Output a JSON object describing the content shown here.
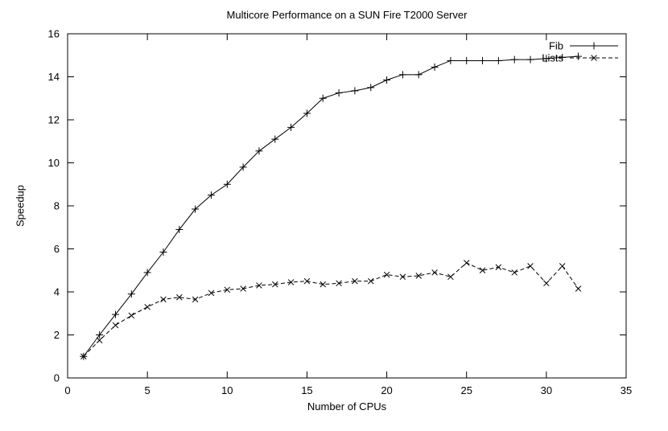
{
  "chart_data": {
    "type": "line",
    "title": "Multicore Performance on a SUN Fire T2000 Server",
    "xlabel": "Number of CPUs",
    "ylabel": "Speedup",
    "xlim": [
      0,
      35
    ],
    "ylim": [
      0,
      16
    ],
    "xticks": [
      0,
      5,
      10,
      15,
      20,
      25,
      30,
      35
    ],
    "yticks": [
      0,
      2,
      4,
      6,
      8,
      10,
      12,
      14,
      16
    ],
    "grid": false,
    "legend_position": "top-right-inside",
    "background": "#ffffff",
    "axis_color": "#000000",
    "x": [
      1,
      2,
      3,
      4,
      5,
      6,
      7,
      8,
      9,
      10,
      11,
      12,
      13,
      14,
      15,
      16,
      17,
      18,
      19,
      20,
      21,
      22,
      23,
      24,
      25,
      26,
      27,
      28,
      29,
      30,
      31,
      32
    ],
    "series": [
      {
        "name": "Fib",
        "marker": "plus",
        "line_style": "solid",
        "color": "#000000",
        "values": [
          1.0,
          2.0,
          2.95,
          3.9,
          4.9,
          5.85,
          6.9,
          7.85,
          8.5,
          9.0,
          9.8,
          10.55,
          11.1,
          11.65,
          12.3,
          13.0,
          13.25,
          13.35,
          13.5,
          13.85,
          14.1,
          14.1,
          14.45,
          14.75,
          14.75,
          14.75,
          14.75,
          14.8,
          14.8,
          14.85,
          14.9,
          14.95
        ]
      },
      {
        "name": "Lists",
        "marker": "x",
        "line_style": "dashed",
        "color": "#000000",
        "values": [
          1.0,
          1.75,
          2.45,
          2.9,
          3.3,
          3.65,
          3.75,
          3.65,
          3.95,
          4.1,
          4.15,
          4.3,
          4.35,
          4.45,
          4.5,
          4.35,
          4.4,
          4.5,
          4.5,
          4.8,
          4.7,
          4.75,
          4.9,
          4.7,
          5.35,
          5.0,
          5.15,
          4.9,
          5.2,
          4.4,
          5.2,
          4.15
        ]
      }
    ]
  }
}
